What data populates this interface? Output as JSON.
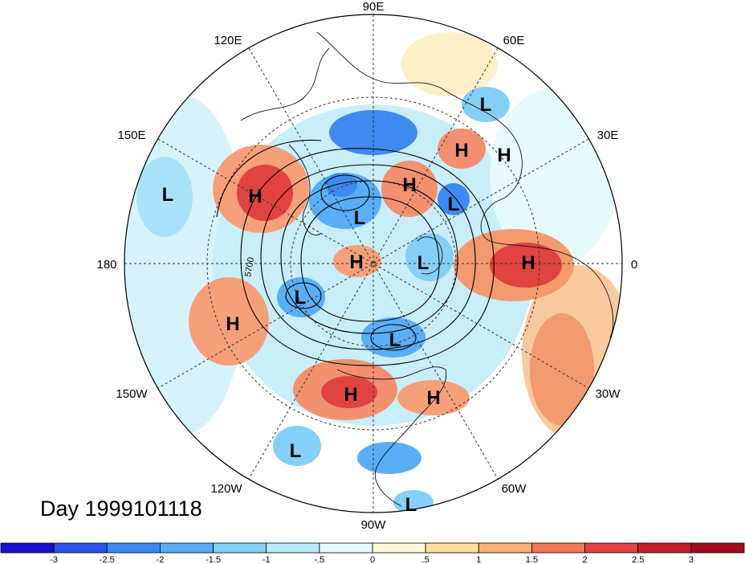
{
  "title": "Day 1999101118",
  "longitude_labels": [
    "90E",
    "60E",
    "30E",
    "0",
    "30W",
    "60W",
    "90W",
    "120W",
    "150W",
    "180",
    "150E",
    "120E"
  ],
  "pressure_centers": [
    "L",
    "H",
    "H",
    "L",
    "H",
    "L",
    "L",
    "H",
    "H",
    "L",
    "H",
    "L",
    "L",
    "H",
    "L",
    "H",
    "H",
    "L",
    "L"
  ],
  "contour_label": "5700",
  "colorbar": {
    "ticks": [
      "-3",
      "-2.5",
      "-2",
      "-1.5",
      "-1",
      "-.5",
      "0",
      ".5",
      "1",
      "1.5",
      "2",
      "2.5",
      "3"
    ],
    "colors": [
      "#1a0fcc",
      "#2a55e6",
      "#3f8af0",
      "#5aaef5",
      "#85d0f7",
      "#b8ecfa",
      "#e6fbfc",
      "#fdf8d8",
      "#fce0a0",
      "#f9b07a",
      "#f07a55",
      "#e04340",
      "#c41f2c",
      "#a00e1e"
    ]
  }
}
